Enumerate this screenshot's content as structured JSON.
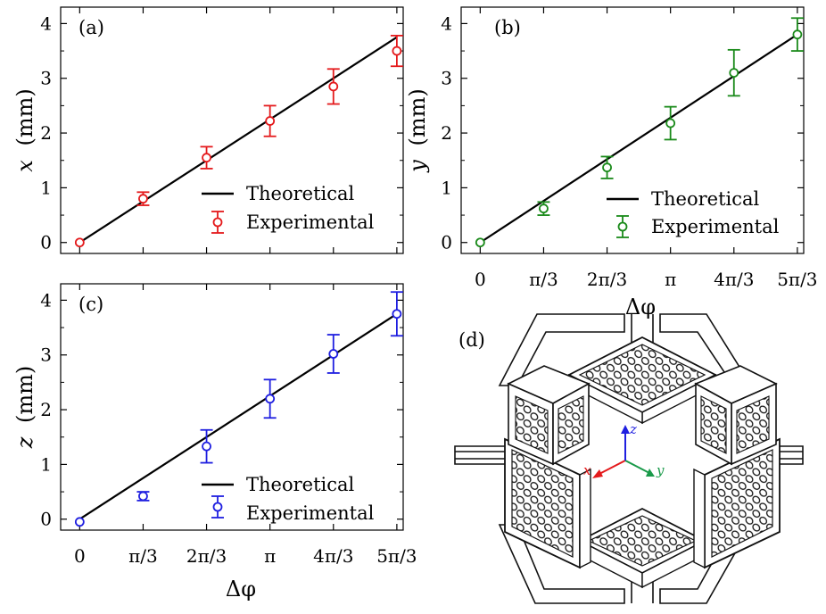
{
  "chart_data": [
    {
      "type": "scatter",
      "panel_label": "(a)",
      "color": "#e41a1c",
      "ylabel_var": "x",
      "ylabel_unit": "(mm)",
      "xlabel": "",
      "ylim": [
        -0.2,
        4.3
      ],
      "y_ticks": [
        "0",
        "1",
        "2",
        "3",
        "4"
      ],
      "x_ticks": [],
      "legend": [
        "Theoretical",
        "Experimental"
      ],
      "legend_position": "bottom-right",
      "theory_line": {
        "x": [
          0,
          5
        ],
        "y": [
          0,
          3.75
        ]
      },
      "experimental": {
        "x": [
          0,
          1,
          2,
          3,
          4,
          5
        ],
        "y": [
          0.0,
          0.8,
          1.55,
          2.22,
          2.85,
          3.5
        ],
        "err": [
          0.0,
          0.12,
          0.2,
          0.28,
          0.32,
          0.28
        ]
      }
    },
    {
      "type": "scatter",
      "panel_label": "(b)",
      "color": "#1a8a1a",
      "ylabel_var": "y",
      "ylabel_unit": "(mm)",
      "xlabel": "Δφ",
      "ylim": [
        -0.2,
        4.3
      ],
      "y_ticks": [
        "0",
        "1",
        "2",
        "3",
        "4"
      ],
      "x_ticks": [
        "0",
        "π/3",
        "2π/3",
        "π",
        "4π/3",
        "5π/3"
      ],
      "legend": [
        "Theoretical",
        "Experimental"
      ],
      "legend_position": "bottom-right",
      "theory_line": {
        "x": [
          0,
          5
        ],
        "y": [
          0,
          3.8
        ]
      },
      "experimental": {
        "x": [
          0,
          1,
          2,
          3,
          4,
          5
        ],
        "y": [
          0.0,
          0.62,
          1.37,
          2.18,
          3.1,
          3.8
        ],
        "err": [
          0.0,
          0.12,
          0.2,
          0.3,
          0.42,
          0.3
        ]
      }
    },
    {
      "type": "scatter",
      "panel_label": "(c)",
      "color": "#1f1fe0",
      "ylabel_var": "z",
      "ylabel_unit": "(mm)",
      "xlabel": "Δφ",
      "ylim": [
        -0.2,
        4.3
      ],
      "y_ticks": [
        "0",
        "1",
        "2",
        "3",
        "4"
      ],
      "x_ticks": [
        "0",
        "π/3",
        "2π/3",
        "π",
        "4π/3",
        "5π/3"
      ],
      "legend": [
        "Theoretical",
        "Experimental"
      ],
      "legend_position": "bottom-right",
      "theory_line": {
        "x": [
          0,
          5
        ],
        "y": [
          0,
          3.75
        ]
      },
      "experimental": {
        "x": [
          0,
          1,
          2,
          3,
          4,
          5
        ],
        "y": [
          -0.05,
          0.42,
          1.33,
          2.2,
          3.02,
          3.75
        ],
        "err": [
          0.0,
          0.08,
          0.3,
          0.35,
          0.35,
          0.4
        ]
      }
    }
  ],
  "panel_d": {
    "label": "(d)",
    "axes": [
      {
        "name": "x",
        "color": "#e41a1c"
      },
      {
        "name": "y",
        "color": "#1a9a4a"
      },
      {
        "name": "z",
        "color": "#1f1fe0"
      }
    ]
  }
}
